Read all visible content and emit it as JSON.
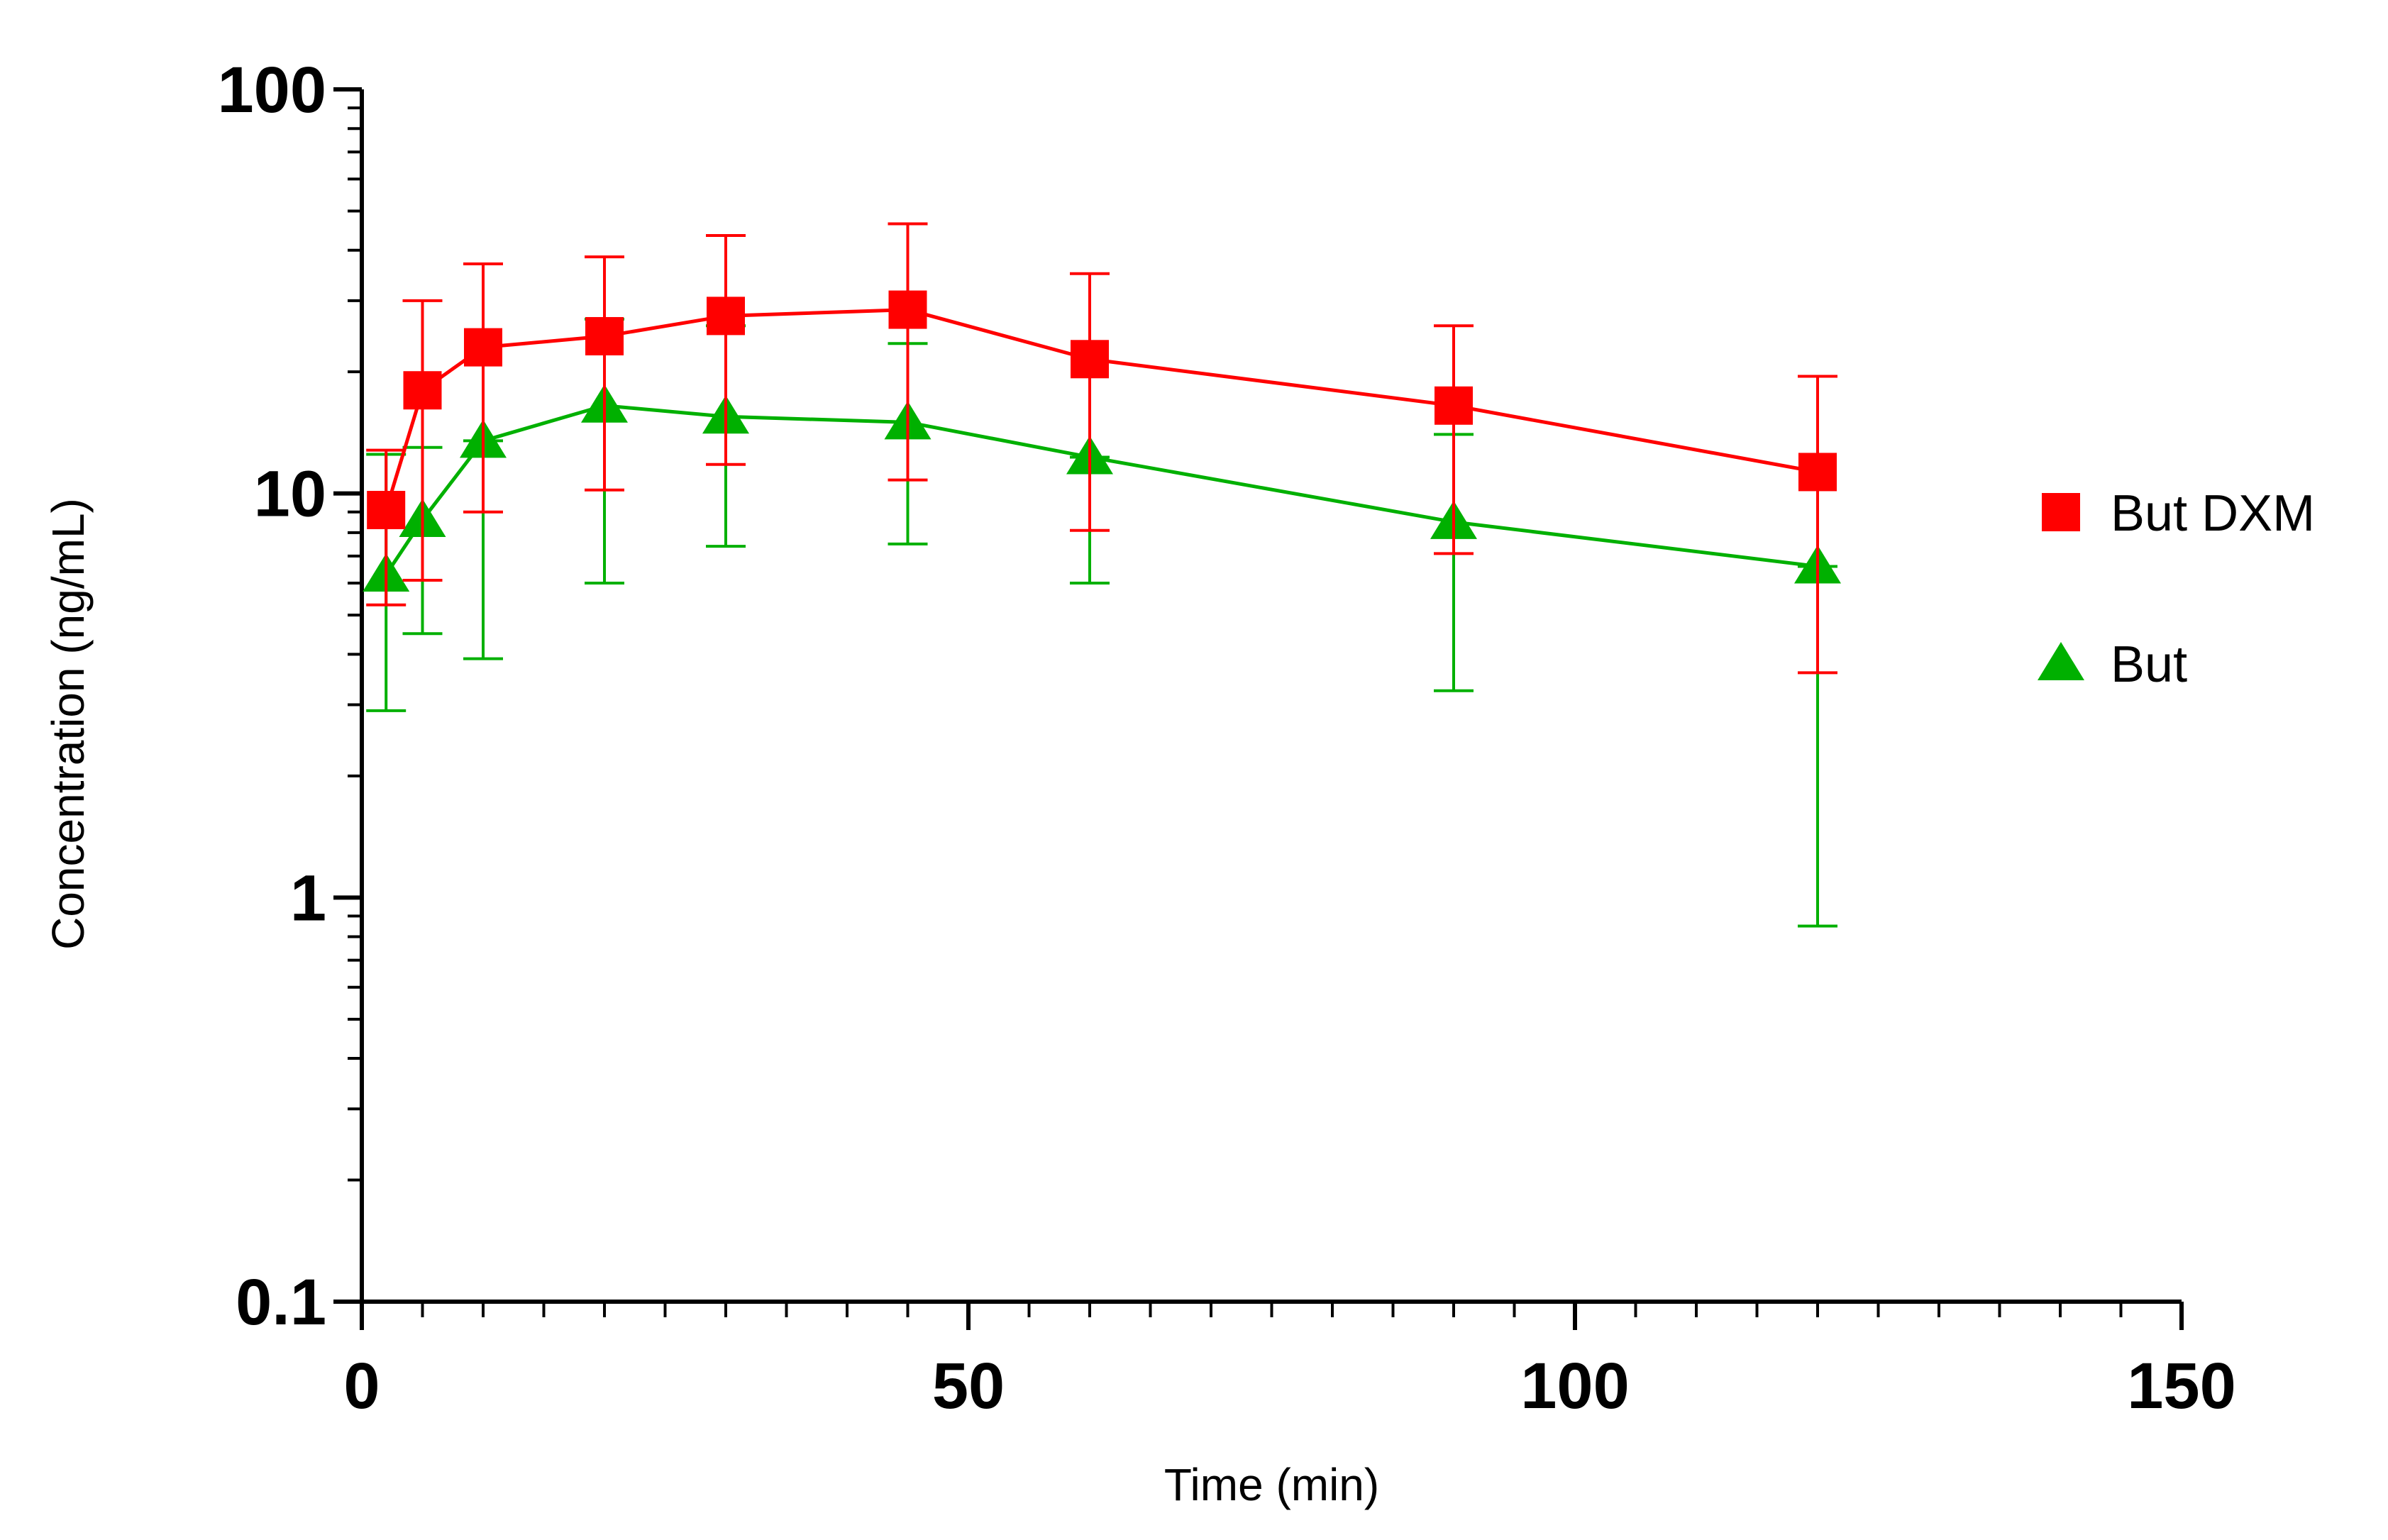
{
  "chart_data": {
    "type": "line",
    "title": "",
    "xlabel": "Time (min)",
    "ylabel": "Concentration (ng/mL)",
    "xlim": [
      0,
      150
    ],
    "ylim": [
      0.1,
      100
    ],
    "yscale": "log",
    "x_ticks": [
      {
        "value": 0,
        "label": "0"
      },
      {
        "value": 50,
        "label": "50"
      },
      {
        "value": 100,
        "label": "100"
      },
      {
        "value": 150,
        "label": "150"
      }
    ],
    "x_minor_step": 5,
    "y_ticks": [
      {
        "value": 0.1,
        "label": "0.1"
      },
      {
        "value": 1,
        "label": "1"
      },
      {
        "value": 10,
        "label": "10"
      },
      {
        "value": 100,
        "label": "100"
      }
    ],
    "grid": false,
    "legend_position": "right",
    "series": [
      {
        "name": "But DXM",
        "color": "#ff0000",
        "marker": "square",
        "x": [
          2,
          5,
          10,
          20,
          30,
          45,
          60,
          90,
          120
        ],
        "y": [
          9.1,
          18.0,
          23.0,
          24.5,
          27.5,
          28.5,
          21.5,
          16.5,
          11.3
        ],
        "err_low": [
          5.3,
          6.1,
          9.0,
          10.2,
          11.8,
          10.8,
          8.1,
          7.1,
          3.6
        ],
        "err_high": [
          12.8,
          30.0,
          37.0,
          38.5,
          43.5,
          46.5,
          35.0,
          26.0,
          19.5
        ]
      },
      {
        "name": "But",
        "color": "#00b000",
        "marker": "triangle",
        "x": [
          2,
          5,
          10,
          20,
          30,
          45,
          60,
          90,
          120
        ],
        "y": [
          6.3,
          8.6,
          13.5,
          16.5,
          15.5,
          15.0,
          12.3,
          8.5,
          6.6
        ],
        "err_low": [
          2.9,
          4.5,
          3.9,
          6.0,
          7.4,
          7.5,
          6.0,
          3.25,
          0.85
        ],
        "err_high": [
          12.5,
          13.0,
          13.5,
          27.0,
          26.0,
          23.5,
          12.3,
          14.0,
          6.6
        ]
      }
    ]
  }
}
